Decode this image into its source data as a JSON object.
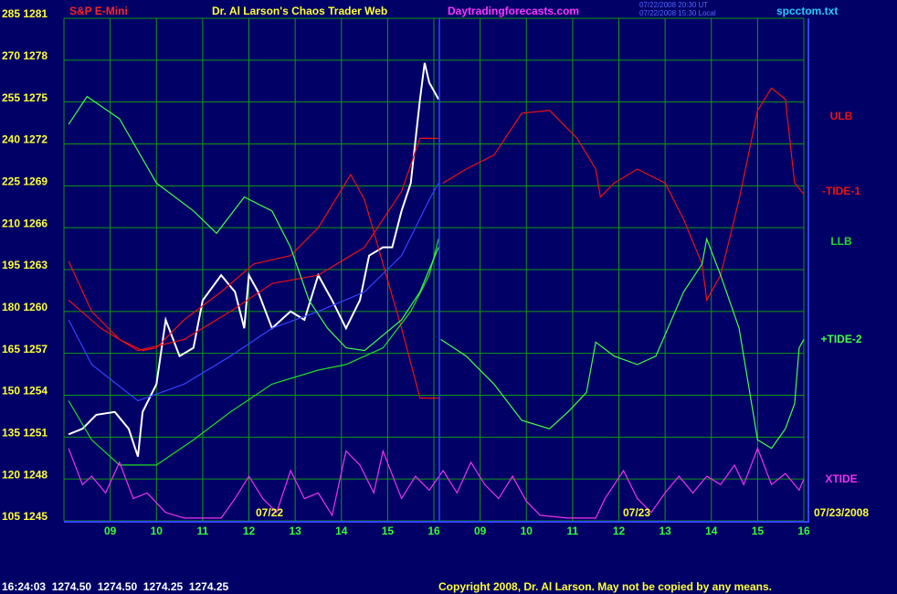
{
  "chart_data": {
    "type": "line",
    "symbol": "S&P E-Mini",
    "title": "Dr. Al Larson's Chaos Trader Web",
    "website": "Daytradingforecasts.com",
    "timestamps": [
      "07/22/2008 20:30 UT",
      "07/22/2008 15:30 Local"
    ],
    "file": "spcctom.txt",
    "date_labels": [
      "07/22",
      "07/23",
      "07/23/2008"
    ],
    "status": "16:24:03  1274.50  1274.50  1274.25  1274.25",
    "copyright": "Copyright 2008, Dr. Al Larson. May not be copied by any means.",
    "grid": true,
    "xlim": [
      0,
      16
    ],
    "ylim": [
      105,
      285
    ],
    "xticks": [
      {
        "value": 1,
        "label": "09"
      },
      {
        "value": 2,
        "label": "10"
      },
      {
        "value": 3,
        "label": "11"
      },
      {
        "value": 4,
        "label": "12"
      },
      {
        "value": 5,
        "label": "13"
      },
      {
        "value": 6,
        "label": "14"
      },
      {
        "value": 7,
        "label": "15"
      },
      {
        "value": 8,
        "label": "16"
      },
      {
        "value": 9,
        "label": "09"
      },
      {
        "value": 10,
        "label": "10"
      },
      {
        "value": 11,
        "label": "11"
      },
      {
        "value": 12,
        "label": "12"
      },
      {
        "value": 13,
        "label": "13"
      },
      {
        "value": 14,
        "label": "14"
      },
      {
        "value": 15,
        "label": "15"
      },
      {
        "value": 16,
        "label": "16"
      }
    ],
    "yticks": [
      {
        "value": 285,
        "label": "285 1281"
      },
      {
        "value": 270,
        "label": "270 1278"
      },
      {
        "value": 255,
        "label": "255 1275"
      },
      {
        "value": 240,
        "label": "240 1272"
      },
      {
        "value": 225,
        "label": "225 1269"
      },
      {
        "value": 210,
        "label": "210 1266"
      },
      {
        "value": 195,
        "label": "195 1263"
      },
      {
        "value": 180,
        "label": "180 1260"
      },
      {
        "value": 165,
        "label": "165 1257"
      },
      {
        "value": 150,
        "label": "150 1254"
      },
      {
        "value": 135,
        "label": "135 1251"
      },
      {
        "value": 120,
        "label": "120 1248"
      },
      {
        "value": 105,
        "label": "105 1245"
      }
    ],
    "series": [
      {
        "color": "#ffffff",
        "x": [
          0.1,
          0.4,
          0.7,
          1.1,
          1.4,
          1.6,
          1.7,
          2.0,
          2.2,
          2.5,
          2.8,
          3.0,
          3.4,
          3.7,
          3.9,
          4.0,
          4.2,
          4.5,
          4.9,
          5.2,
          5.5,
          5.8,
          6.1,
          6.4,
          6.6,
          6.9,
          7.1,
          7.3,
          7.5,
          7.7,
          7.8,
          7.9,
          8.1
        ],
        "values": [
          136,
          138,
          143,
          144,
          138,
          128,
          144,
          154,
          177,
          164,
          167,
          184,
          193,
          187,
          174,
          193,
          187,
          174,
          180,
          177,
          193,
          184,
          174,
          184,
          200,
          203,
          203,
          216,
          226,
          256,
          269,
          262,
          256
        ]
      },
      {
        "color": "#3344ff",
        "x": [
          0.1,
          0.6,
          1.6,
          2.6,
          3.6,
          4.5,
          5.5,
          6.5,
          7.3,
          7.9,
          8.1
        ],
        "values": [
          177,
          161,
          148,
          154,
          164,
          174,
          180,
          187,
          200,
          220,
          226
        ]
      },
      {
        "name": "ULB",
        "color": "#ee1111",
        "x": [
          0.1,
          0.8,
          1.6,
          2.6,
          3.6,
          4.5,
          5.5,
          6.5,
          7.3,
          7.7,
          8.1
        ],
        "values": [
          184,
          174,
          166,
          170,
          180,
          190,
          193,
          203,
          223,
          242,
          242
        ]
      },
      {
        "name": "-TIDE-1",
        "color": "#ee1111",
        "x": [
          0.1,
          0.6,
          1.2,
          1.7,
          2.0,
          2.6,
          3.4,
          4.1,
          4.9,
          5.5,
          6.2,
          6.5,
          6.9,
          7.3,
          7.7,
          8.1,
          8.15,
          8.2,
          8.7,
          9.3,
          9.9,
          10.5,
          11.1,
          11.5,
          11.6,
          11.9,
          12.4,
          13.0,
          13.4,
          13.8,
          13.9,
          14.2,
          14.6,
          15.0,
          15.3,
          15.6,
          15.8,
          16.0
        ],
        "values": [
          198,
          180,
          170,
          166,
          167,
          177,
          187,
          197,
          200,
          210,
          229,
          220,
          197,
          174,
          149,
          149,
          null,
          226,
          231,
          236,
          251,
          252,
          242,
          231,
          221,
          226,
          231,
          226,
          213,
          197,
          184,
          193,
          220,
          252,
          260,
          256,
          226,
          222
        ]
      },
      {
        "name": "LLB",
        "color": "#22dd22",
        "x": [
          0.1,
          0.6,
          1.2,
          2.0,
          2.8,
          3.6,
          4.5,
          5.5,
          6.1,
          6.9,
          7.5,
          7.9,
          8.1
        ],
        "values": [
          148,
          134,
          125,
          125,
          134,
          144,
          154,
          159,
          161,
          167,
          180,
          193,
          206
        ]
      },
      {
        "name": "+TIDE-2",
        "color": "#44ff44",
        "x": [
          0.1,
          0.5,
          1.2,
          2.0,
          2.8,
          3.3,
          3.9,
          4.5,
          4.9,
          5.3,
          5.7,
          6.1,
          6.5,
          7.3,
          7.7,
          8.1,
          8.12,
          8.15,
          8.7,
          9.3,
          9.9,
          10.5,
          10.9,
          11.3,
          11.5,
          11.9,
          12.4,
          12.8,
          13.4,
          13.8,
          13.9,
          14.2,
          14.6,
          15.0,
          15.3,
          15.6,
          15.8,
          15.9,
          16.0
        ],
        "values": [
          247,
          257,
          249,
          226,
          216,
          208,
          221,
          216,
          203,
          184,
          174,
          167,
          166,
          177,
          187,
          203,
          null,
          170,
          164,
          154,
          141,
          138,
          144,
          151,
          169,
          164,
          161,
          164,
          187,
          197,
          206,
          193,
          174,
          134,
          131,
          138,
          147,
          167,
          170
        ]
      },
      {
        "name": "XTIDE",
        "color": "#ee33ee",
        "x": [
          0.1,
          0.4,
          0.6,
          0.9,
          1.2,
          1.5,
          1.8,
          2.2,
          2.6,
          3.4,
          3.7,
          4.0,
          4.3,
          4.6,
          4.9,
          5.2,
          5.5,
          5.8,
          6.1,
          6.4,
          6.7,
          6.9,
          7.3,
          7.6,
          7.9,
          8.2,
          8.5,
          8.8,
          9.1,
          9.4,
          9.7,
          10.0,
          10.3,
          10.9,
          11.5,
          11.7,
          12.1,
          12.4,
          12.7,
          13.0,
          13.3,
          13.6,
          13.9,
          14.2,
          14.5,
          14.7,
          15.0,
          15.3,
          15.6,
          15.9,
          16.0
        ],
        "values": [
          131,
          118,
          121,
          115,
          126,
          113,
          115,
          108,
          106,
          106,
          113,
          121,
          113,
          108,
          123,
          113,
          115,
          107,
          130,
          125,
          115,
          130,
          113,
          121,
          116,
          123,
          115,
          126,
          118,
          113,
          121,
          112,
          107,
          106,
          106,
          113,
          123,
          113,
          108,
          115,
          121,
          115,
          121,
          118,
          125,
          118,
          131,
          118,
          122,
          116,
          120
        ]
      }
    ]
  }
}
